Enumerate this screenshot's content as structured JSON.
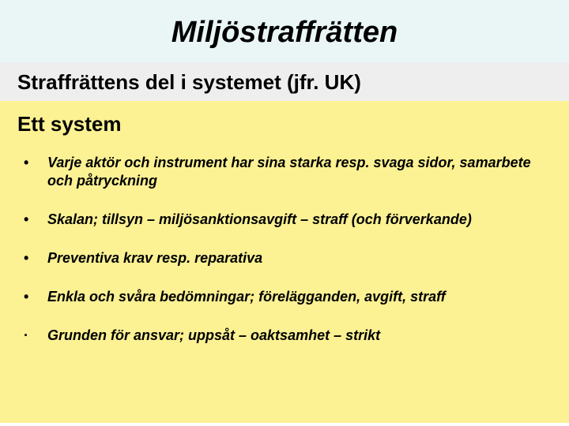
{
  "slide": {
    "title": "Miljöstraffrätten",
    "heading": "Straffrättens del i systemet (jfr. UK)",
    "subheading": "Ett system",
    "bullets": {
      "marker_disc": "•",
      "marker_dot": "·",
      "items": [
        "Varje aktör och instrument har sina starka resp. svaga sidor, samarbete och påtryckning",
        "Skalan; tillsyn – miljösanktionsavgift – straff (och förverkande)",
        "Preventiva krav resp. reparativa",
        "Enkla och svåra bedömningar; förelägganden, avgift, straff",
        "Grunden för ansvar; uppsåt – oaktsamhet – strikt"
      ]
    },
    "colors": {
      "title_band_bg": "#eaf6f6",
      "heading_band_bg": "#eeeeee",
      "body_bg": "#fcf193",
      "text": "#000000"
    },
    "typography": {
      "title_fontsize": 38,
      "heading_fontsize": 26,
      "subheading_fontsize": 26,
      "bullet_fontsize": 18,
      "font_family": "Arial"
    }
  }
}
